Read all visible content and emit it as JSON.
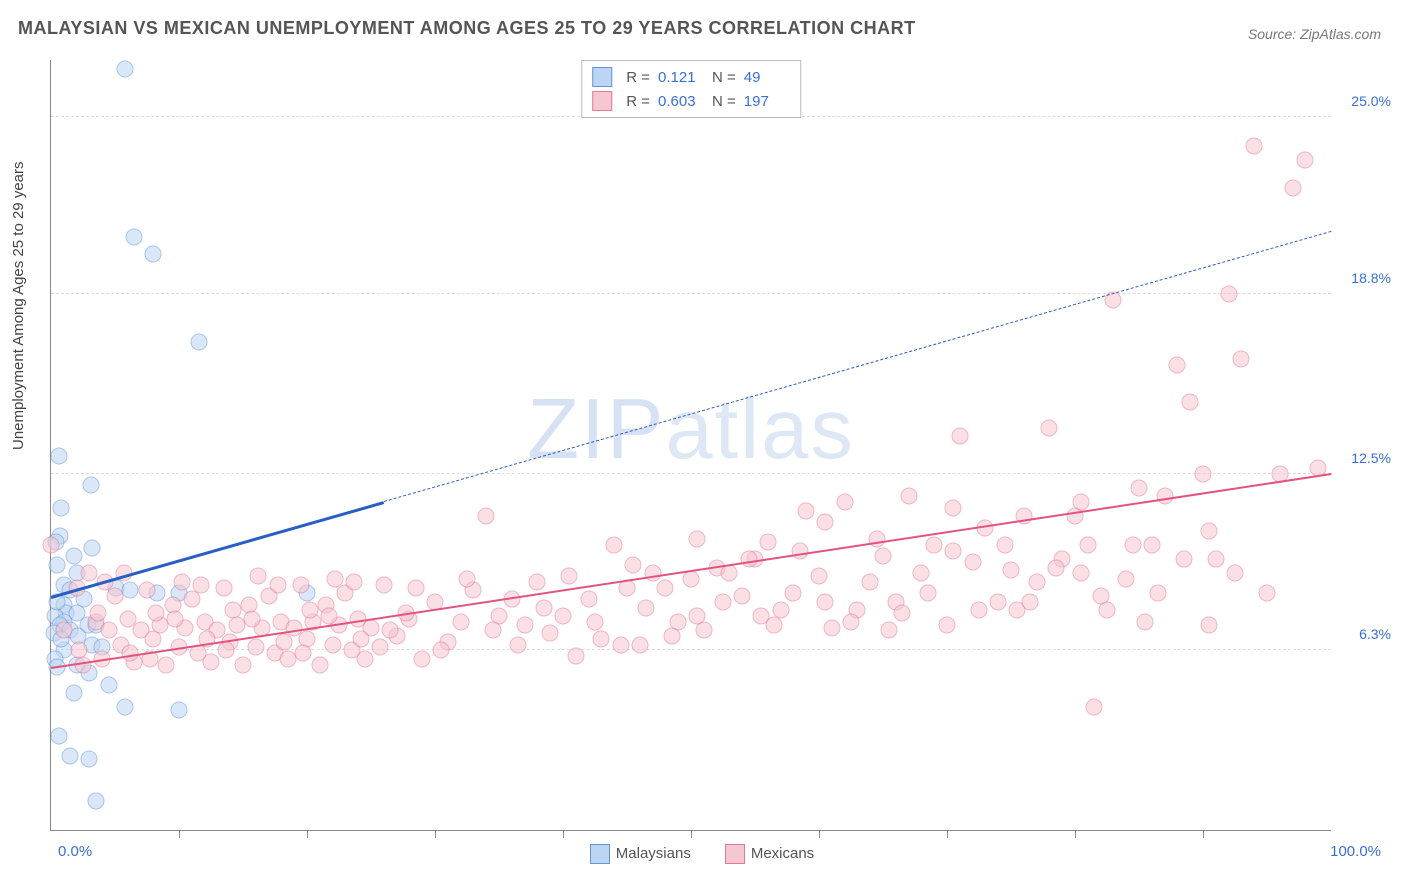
{
  "title": "MALAYSIAN VS MEXICAN UNEMPLOYMENT AMONG AGES 25 TO 29 YEARS CORRELATION CHART",
  "source": "Source: ZipAtlas.com",
  "ylabel": "Unemployment Among Ages 25 to 29 years",
  "watermark": {
    "z": "Z",
    "i": "I",
    "p": "P",
    "rest": "atlas"
  },
  "chart": {
    "type": "scatter-correlation",
    "background_color": "#ffffff",
    "grid_color": "#dddddd",
    "axis_color": "#888888",
    "x": {
      "min": 0,
      "max": 100,
      "min_label": "0.0%",
      "max_label": "100.0%",
      "n_ticks": 10
    },
    "y": {
      "min": 0,
      "max": 27,
      "gridlines": [
        {
          "value": 6.3,
          "label": "6.3%"
        },
        {
          "value": 12.5,
          "label": "12.5%"
        },
        {
          "value": 18.8,
          "label": "18.8%"
        },
        {
          "value": 25.0,
          "label": "25.0%"
        }
      ],
      "label_color": "#3b6fd6",
      "label_fontsize": 14
    },
    "top_legend": {
      "rows": [
        {
          "R_label": "R =",
          "R": "0.121",
          "N_label": "N =",
          "N": "49",
          "fill": "#bcd5f3",
          "stroke": "#6794d8"
        },
        {
          "R_label": "R =",
          "R": "0.603",
          "N_label": "N =",
          "N": "197",
          "fill": "#f6c6d1",
          "stroke": "#e27a98"
        }
      ]
    },
    "bottom_legend": {
      "items": [
        {
          "label": "Malaysians",
          "fill": "#bcd5f3",
          "stroke": "#6794d8"
        },
        {
          "label": "Mexicans",
          "fill": "#f6c6d1",
          "stroke": "#e27a98"
        }
      ]
    },
    "series": [
      {
        "name": "Malaysians",
        "marker": {
          "shape": "circle",
          "size": 15,
          "fill": "#bcd5f3",
          "stroke": "#6794d8",
          "stroke_width": 1,
          "fill_opacity": 0.55
        },
        "regression": {
          "x_solid_end": 26,
          "color": "#2a5ec7",
          "solid_width": 3,
          "dash_pattern": "6 5",
          "dash_width": 1.5,
          "start": {
            "x": 0,
            "y": 8.2
          },
          "end": {
            "x": 100,
            "y": 21.0
          }
        },
        "points": [
          {
            "x": 5.8,
            "y": 26.7
          },
          {
            "x": 6.5,
            "y": 20.8
          },
          {
            "x": 8.0,
            "y": 20.2
          },
          {
            "x": 11.6,
            "y": 17.1
          },
          {
            "x": 0.6,
            "y": 13.1
          },
          {
            "x": 3.1,
            "y": 12.1
          },
          {
            "x": 0.8,
            "y": 11.3
          },
          {
            "x": 0.7,
            "y": 10.3
          },
          {
            "x": 0.4,
            "y": 10.1
          },
          {
            "x": 3.2,
            "y": 9.9
          },
          {
            "x": 2.0,
            "y": 9.0
          },
          {
            "x": 1.0,
            "y": 8.6
          },
          {
            "x": 0.5,
            "y": 9.3
          },
          {
            "x": 5.1,
            "y": 8.5
          },
          {
            "x": 6.2,
            "y": 8.4
          },
          {
            "x": 8.3,
            "y": 8.3
          },
          {
            "x": 10.0,
            "y": 8.3
          },
          {
            "x": 20.0,
            "y": 8.3
          },
          {
            "x": 2.6,
            "y": 8.1
          },
          {
            "x": 1.0,
            "y": 7.9
          },
          {
            "x": 1.2,
            "y": 7.6
          },
          {
            "x": 2.0,
            "y": 7.6
          },
          {
            "x": 0.3,
            "y": 7.5
          },
          {
            "x": 1.0,
            "y": 7.3
          },
          {
            "x": 0.7,
            "y": 7.2
          },
          {
            "x": 2.9,
            "y": 7.2
          },
          {
            "x": 3.5,
            "y": 7.2
          },
          {
            "x": 1.5,
            "y": 7.0
          },
          {
            "x": 0.2,
            "y": 6.9
          },
          {
            "x": 2.1,
            "y": 6.8
          },
          {
            "x": 3.2,
            "y": 6.5
          },
          {
            "x": 4.0,
            "y": 6.4
          },
          {
            "x": 1.0,
            "y": 6.3
          },
          {
            "x": 0.3,
            "y": 6.0
          },
          {
            "x": 2.0,
            "y": 5.8
          },
          {
            "x": 0.5,
            "y": 5.7
          },
          {
            "x": 3.0,
            "y": 5.5
          },
          {
            "x": 4.5,
            "y": 5.1
          },
          {
            "x": 1.8,
            "y": 4.8
          },
          {
            "x": 5.8,
            "y": 4.3
          },
          {
            "x": 10.0,
            "y": 4.2
          },
          {
            "x": 0.6,
            "y": 3.3
          },
          {
            "x": 1.5,
            "y": 2.6
          },
          {
            "x": 3.0,
            "y": 2.5
          },
          {
            "x": 3.5,
            "y": 1.0
          },
          {
            "x": 0.5,
            "y": 8.0
          },
          {
            "x": 1.5,
            "y": 8.4
          },
          {
            "x": 0.8,
            "y": 6.7
          },
          {
            "x": 1.8,
            "y": 9.6
          }
        ]
      },
      {
        "name": "Mexicans",
        "marker": {
          "shape": "circle",
          "size": 15,
          "fill": "#f6c6d1",
          "stroke": "#e27a98",
          "stroke_width": 1,
          "fill_opacity": 0.55
        },
        "regression": {
          "x_solid_end": 100,
          "color": "#e2547e",
          "solid_width": 2.5,
          "dash_pattern": "",
          "dash_width": 0,
          "start": {
            "x": 0,
            "y": 5.7
          },
          "end": {
            "x": 100,
            "y": 12.5
          }
        },
        "points": [
          {
            "x": 0.0,
            "y": 10.0
          },
          {
            "x": 1.0,
            "y": 7.0
          },
          {
            "x": 2.0,
            "y": 8.5
          },
          {
            "x": 2.5,
            "y": 5.8
          },
          {
            "x": 3.0,
            "y": 9.0
          },
          {
            "x": 3.5,
            "y": 7.3
          },
          {
            "x": 4.0,
            "y": 6.0
          },
          {
            "x": 4.5,
            "y": 7.0
          },
          {
            "x": 5.0,
            "y": 8.2
          },
          {
            "x": 5.5,
            "y": 6.5
          },
          {
            "x": 6.0,
            "y": 7.4
          },
          {
            "x": 6.5,
            "y": 5.9
          },
          {
            "x": 7.0,
            "y": 7.0
          },
          {
            "x": 7.5,
            "y": 8.4
          },
          {
            "x": 8.0,
            "y": 6.7
          },
          {
            "x": 8.5,
            "y": 7.2
          },
          {
            "x": 9.0,
            "y": 5.8
          },
          {
            "x": 9.5,
            "y": 7.9
          },
          {
            "x": 10.0,
            "y": 6.4
          },
          {
            "x": 10.5,
            "y": 7.1
          },
          {
            "x": 11.0,
            "y": 8.1
          },
          {
            "x": 11.5,
            "y": 6.2
          },
          {
            "x": 12.0,
            "y": 7.3
          },
          {
            "x": 12.5,
            "y": 5.9
          },
          {
            "x": 13.0,
            "y": 7.0
          },
          {
            "x": 13.5,
            "y": 8.5
          },
          {
            "x": 14.0,
            "y": 6.6
          },
          {
            "x": 14.5,
            "y": 7.2
          },
          {
            "x": 15.0,
            "y": 5.8
          },
          {
            "x": 15.5,
            "y": 7.9
          },
          {
            "x": 16.0,
            "y": 6.4
          },
          {
            "x": 16.5,
            "y": 7.1
          },
          {
            "x": 17.0,
            "y": 8.2
          },
          {
            "x": 17.5,
            "y": 6.2
          },
          {
            "x": 18.0,
            "y": 7.3
          },
          {
            "x": 18.5,
            "y": 6.0
          },
          {
            "x": 19.0,
            "y": 7.1
          },
          {
            "x": 19.5,
            "y": 8.6
          },
          {
            "x": 20.0,
            "y": 6.7
          },
          {
            "x": 20.5,
            "y": 7.3
          },
          {
            "x": 21.0,
            "y": 5.8
          },
          {
            "x": 21.5,
            "y": 7.9
          },
          {
            "x": 22.0,
            "y": 6.5
          },
          {
            "x": 22.5,
            "y": 7.2
          },
          {
            "x": 23.0,
            "y": 8.3
          },
          {
            "x": 23.5,
            "y": 6.3
          },
          {
            "x": 24.0,
            "y": 7.4
          },
          {
            "x": 24.5,
            "y": 6.0
          },
          {
            "x": 25.0,
            "y": 7.1
          },
          {
            "x": 26.0,
            "y": 8.6
          },
          {
            "x": 27.0,
            "y": 6.8
          },
          {
            "x": 28.0,
            "y": 7.4
          },
          {
            "x": 29.0,
            "y": 6.0
          },
          {
            "x": 30.0,
            "y": 8.0
          },
          {
            "x": 31.0,
            "y": 6.6
          },
          {
            "x": 32.0,
            "y": 7.3
          },
          {
            "x": 33.0,
            "y": 8.4
          },
          {
            "x": 34.0,
            "y": 11.0
          },
          {
            "x": 35.0,
            "y": 7.5
          },
          {
            "x": 36.0,
            "y": 8.1
          },
          {
            "x": 37.0,
            "y": 7.2
          },
          {
            "x": 38.0,
            "y": 8.7
          },
          {
            "x": 39.0,
            "y": 6.9
          },
          {
            "x": 40.0,
            "y": 7.5
          },
          {
            "x": 41.0,
            "y": 6.1
          },
          {
            "x": 42.0,
            "y": 8.1
          },
          {
            "x": 43.0,
            "y": 6.7
          },
          {
            "x": 44.0,
            "y": 10.0
          },
          {
            "x": 45.0,
            "y": 8.5
          },
          {
            "x": 46.0,
            "y": 6.5
          },
          {
            "x": 47.0,
            "y": 9.0
          },
          {
            "x": 48.0,
            "y": 8.5
          },
          {
            "x": 49.0,
            "y": 7.3
          },
          {
            "x": 50.0,
            "y": 8.8
          },
          {
            "x": 51.0,
            "y": 7.0
          },
          {
            "x": 52.0,
            "y": 9.2
          },
          {
            "x": 53.0,
            "y": 9.0
          },
          {
            "x": 54.0,
            "y": 8.2
          },
          {
            "x": 55.0,
            "y": 9.5
          },
          {
            "x": 56.0,
            "y": 10.1
          },
          {
            "x": 57.0,
            "y": 7.7
          },
          {
            "x": 58.0,
            "y": 8.3
          },
          {
            "x": 59.0,
            "y": 11.2
          },
          {
            "x": 60.0,
            "y": 8.9
          },
          {
            "x": 61.0,
            "y": 7.1
          },
          {
            "x": 62.0,
            "y": 11.5
          },
          {
            "x": 63.0,
            "y": 7.7
          },
          {
            "x": 64.0,
            "y": 8.7
          },
          {
            "x": 65.0,
            "y": 9.6
          },
          {
            "x": 66.0,
            "y": 8.0
          },
          {
            "x": 67.0,
            "y": 11.7
          },
          {
            "x": 68.0,
            "y": 9.0
          },
          {
            "x": 69.0,
            "y": 10.0
          },
          {
            "x": 70.0,
            "y": 7.2
          },
          {
            "x": 71.0,
            "y": 13.8
          },
          {
            "x": 72.0,
            "y": 9.4
          },
          {
            "x": 73.0,
            "y": 10.6
          },
          {
            "x": 74.0,
            "y": 8.0
          },
          {
            "x": 75.0,
            "y": 9.1
          },
          {
            "x": 76.0,
            "y": 11.0
          },
          {
            "x": 77.0,
            "y": 8.7
          },
          {
            "x": 78.0,
            "y": 14.1
          },
          {
            "x": 79.0,
            "y": 9.5
          },
          {
            "x": 80.0,
            "y": 11.0
          },
          {
            "x": 81.0,
            "y": 10.0
          },
          {
            "x": 82.0,
            "y": 8.2
          },
          {
            "x": 83.0,
            "y": 18.6
          },
          {
            "x": 84.0,
            "y": 8.8
          },
          {
            "x": 85.0,
            "y": 12.0
          },
          {
            "x": 86.0,
            "y": 10.0
          },
          {
            "x": 87.0,
            "y": 11.7
          },
          {
            "x": 88.0,
            "y": 16.3
          },
          {
            "x": 89.0,
            "y": 15.0
          },
          {
            "x": 90.0,
            "y": 12.5
          },
          {
            "x": 91.0,
            "y": 9.5
          },
          {
            "x": 92.0,
            "y": 18.8
          },
          {
            "x": 93.0,
            "y": 16.5
          },
          {
            "x": 94.0,
            "y": 24.0
          },
          {
            "x": 95.0,
            "y": 8.3
          },
          {
            "x": 96.0,
            "y": 12.5
          },
          {
            "x": 97.0,
            "y": 22.5
          },
          {
            "x": 98.0,
            "y": 23.5
          },
          {
            "x": 99.0,
            "y": 12.7
          },
          {
            "x": 81.5,
            "y": 4.3
          },
          {
            "x": 45.5,
            "y": 9.3
          },
          {
            "x": 50.5,
            "y": 10.2
          },
          {
            "x": 55.5,
            "y": 7.5
          },
          {
            "x": 60.5,
            "y": 10.8
          },
          {
            "x": 65.5,
            "y": 7.0
          },
          {
            "x": 70.5,
            "y": 9.8
          },
          {
            "x": 75.5,
            "y": 7.7
          },
          {
            "x": 80.5,
            "y": 9.0
          },
          {
            "x": 85.5,
            "y": 7.3
          },
          {
            "x": 90.5,
            "y": 7.2
          },
          {
            "x": 26.5,
            "y": 7.0
          },
          {
            "x": 28.5,
            "y": 8.5
          },
          {
            "x": 30.5,
            "y": 6.3
          },
          {
            "x": 32.5,
            "y": 8.8
          },
          {
            "x": 34.5,
            "y": 7.0
          },
          {
            "x": 36.5,
            "y": 6.5
          },
          {
            "x": 38.5,
            "y": 7.8
          },
          {
            "x": 40.5,
            "y": 8.9
          },
          {
            "x": 42.5,
            "y": 7.3
          },
          {
            "x": 44.5,
            "y": 6.5
          },
          {
            "x": 46.5,
            "y": 7.8
          },
          {
            "x": 48.5,
            "y": 6.8
          },
          {
            "x": 50.5,
            "y": 7.5
          },
          {
            "x": 52.5,
            "y": 8.0
          },
          {
            "x": 54.5,
            "y": 9.5
          },
          {
            "x": 56.5,
            "y": 7.2
          },
          {
            "x": 58.5,
            "y": 9.8
          },
          {
            "x": 60.5,
            "y": 8.0
          },
          {
            "x": 62.5,
            "y": 7.3
          },
          {
            "x": 64.5,
            "y": 10.2
          },
          {
            "x": 66.5,
            "y": 7.6
          },
          {
            "x": 68.5,
            "y": 8.3
          },
          {
            "x": 70.5,
            "y": 11.3
          },
          {
            "x": 72.5,
            "y": 7.7
          },
          {
            "x": 74.5,
            "y": 10.0
          },
          {
            "x": 76.5,
            "y": 8.0
          },
          {
            "x": 78.5,
            "y": 9.2
          },
          {
            "x": 80.5,
            "y": 11.5
          },
          {
            "x": 82.5,
            "y": 7.7
          },
          {
            "x": 84.5,
            "y": 10.0
          },
          {
            "x": 86.5,
            "y": 8.3
          },
          {
            "x": 88.5,
            "y": 9.5
          },
          {
            "x": 90.5,
            "y": 10.5
          },
          {
            "x": 92.5,
            "y": 9.0
          },
          {
            "x": 4.2,
            "y": 8.7
          },
          {
            "x": 6.2,
            "y": 6.2
          },
          {
            "x": 8.2,
            "y": 7.6
          },
          {
            "x": 10.2,
            "y": 8.7
          },
          {
            "x": 12.2,
            "y": 6.7
          },
          {
            "x": 14.2,
            "y": 7.7
          },
          {
            "x": 16.2,
            "y": 8.9
          },
          {
            "x": 18.2,
            "y": 6.6
          },
          {
            "x": 20.2,
            "y": 7.7
          },
          {
            "x": 22.2,
            "y": 8.8
          },
          {
            "x": 24.2,
            "y": 6.7
          },
          {
            "x": 2.2,
            "y": 6.3
          },
          {
            "x": 3.7,
            "y": 7.6
          },
          {
            "x": 5.7,
            "y": 9.0
          },
          {
            "x": 7.7,
            "y": 6.0
          },
          {
            "x": 9.7,
            "y": 7.4
          },
          {
            "x": 11.7,
            "y": 8.6
          },
          {
            "x": 13.7,
            "y": 6.3
          },
          {
            "x": 15.7,
            "y": 7.4
          },
          {
            "x": 17.7,
            "y": 8.6
          },
          {
            "x": 19.7,
            "y": 6.2
          },
          {
            "x": 21.7,
            "y": 7.5
          },
          {
            "x": 23.7,
            "y": 8.7
          },
          {
            "x": 25.7,
            "y": 6.4
          },
          {
            "x": 27.7,
            "y": 7.6
          }
        ]
      }
    ]
  }
}
